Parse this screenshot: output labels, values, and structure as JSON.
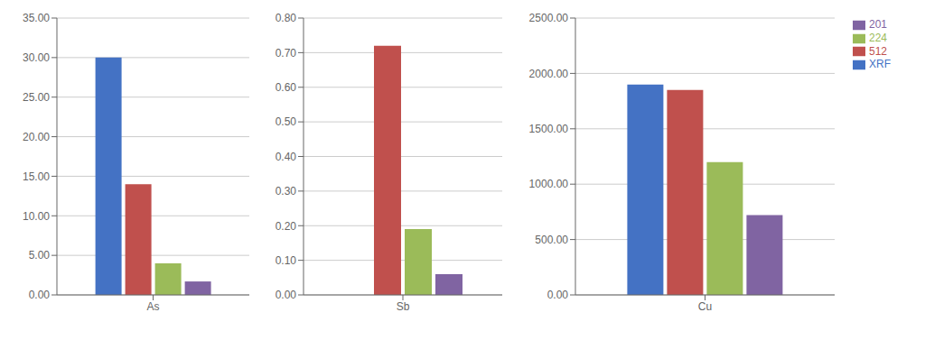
{
  "chart_data": [
    {
      "type": "bar",
      "categories": [
        "As"
      ],
      "series": [
        {
          "name": "XRF",
          "color": "#4472C4",
          "values": [
            30.0
          ]
        },
        {
          "name": "512",
          "color": "#C0504D",
          "values": [
            14.0
          ]
        },
        {
          "name": "224",
          "color": "#9BBB59",
          "values": [
            4.0
          ]
        },
        {
          "name": "201",
          "color": "#8064A2",
          "values": [
            1.7
          ]
        }
      ],
      "ylim": [
        0,
        35
      ],
      "yticks": [
        {
          "value": 0,
          "label": "0.00"
        },
        {
          "value": 5,
          "label": "5.00"
        },
        {
          "value": 10,
          "label": "10.00"
        },
        {
          "value": 15,
          "label": "15.00"
        },
        {
          "value": 20,
          "label": "20.00"
        },
        {
          "value": 25,
          "label": "25.00"
        },
        {
          "value": 30,
          "label": "30.00"
        },
        {
          "value": 35,
          "label": "35.00"
        }
      ],
      "grid": true
    },
    {
      "type": "bar",
      "categories": [
        "Sb"
      ],
      "series": [
        {
          "name": "XRF",
          "color": "#4472C4",
          "values": [
            0.0
          ]
        },
        {
          "name": "512",
          "color": "#C0504D",
          "values": [
            0.72
          ]
        },
        {
          "name": "224",
          "color": "#9BBB59",
          "values": [
            0.19
          ]
        },
        {
          "name": "201",
          "color": "#8064A2",
          "values": [
            0.06
          ]
        }
      ],
      "ylim": [
        0,
        0.8
      ],
      "yticks": [
        {
          "value": 0.0,
          "label": "0.00"
        },
        {
          "value": 0.1,
          "label": "0.10"
        },
        {
          "value": 0.2,
          "label": "0.20"
        },
        {
          "value": 0.3,
          "label": "0.30"
        },
        {
          "value": 0.4,
          "label": "0.40"
        },
        {
          "value": 0.5,
          "label": "0.50"
        },
        {
          "value": 0.6,
          "label": "0.60"
        },
        {
          "value": 0.7,
          "label": "0.70"
        },
        {
          "value": 0.8,
          "label": "0.80"
        }
      ],
      "grid": true
    },
    {
      "type": "bar",
      "categories": [
        "Cu"
      ],
      "series": [
        {
          "name": "XRF",
          "color": "#4472C4",
          "values": [
            1900.0
          ]
        },
        {
          "name": "512",
          "color": "#C0504D",
          "values": [
            1850.0
          ]
        },
        {
          "name": "224",
          "color": "#9BBB59",
          "values": [
            1200.0
          ]
        },
        {
          "name": "201",
          "color": "#8064A2",
          "values": [
            720.0
          ]
        }
      ],
      "ylim": [
        0,
        2500
      ],
      "yticks": [
        {
          "value": 0,
          "label": "0.00"
        },
        {
          "value": 500,
          "label": "500.00"
        },
        {
          "value": 1000,
          "label": "1000.00"
        },
        {
          "value": 1500,
          "label": "1500.00"
        },
        {
          "value": 2000,
          "label": "2000.00"
        },
        {
          "value": 2500,
          "label": "2500.00"
        }
      ],
      "grid": true,
      "legend": "right"
    }
  ]
}
